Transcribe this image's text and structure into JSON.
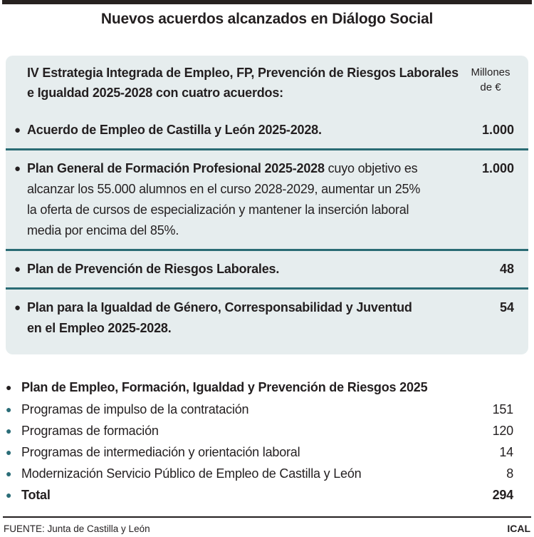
{
  "title": "Nuevos acuerdos alcanzados en Diálogo Social",
  "unit": {
    "line1": "Millones",
    "line2": "de €"
  },
  "strategy": {
    "header": "IV Estrategia Integrada de Empleo, FP, Prevención de Riesgos Laborales e Igualdad 2025-2028 con cuatro acuerdos:",
    "items": [
      {
        "bold": "Acuerdo de Empleo de Castilla y León 2025-2028.",
        "rest": "",
        "value": "1.000"
      },
      {
        "bold": "Plan General de Formación Profesional 2025-2028",
        "rest": " cuyo objetivo es alcanzar los 55.000 alumnos en el curso 2028-2029, aumentar un 25% la oferta de cursos de especialización y mantener la inserción laboral media por encima del 85%.",
        "value": "1.000"
      },
      {
        "bold": "Plan de Prevención de Riesgos Laborales.",
        "rest": "",
        "value": "48"
      },
      {
        "bold": "Plan para la Igualdad de Género, Corresponsabilidad y Juventud en el Empleo 2025-2028.",
        "rest": "",
        "value": "54"
      }
    ]
  },
  "plan2025": {
    "header": "Plan de Empleo, Formación, Igualdad y Prevención de Riesgos 2025",
    "rows": [
      {
        "label": "Programas de impulso de la contratación",
        "value": "151"
      },
      {
        "label": "Programas de formación",
        "value": "120"
      },
      {
        "label": "Programas de intermediación y orientación laboral",
        "value": "14"
      },
      {
        "label": "Modernización Servicio Público de Empleo de Castilla y León",
        "value": "8"
      }
    ],
    "total": {
      "label": "Total",
      "value": "294"
    }
  },
  "footer": {
    "source": "FUENTE: Junta de Castilla y León",
    "credit": "ICAL"
  },
  "icons": {
    "bullet": "●"
  },
  "colors": {
    "ink": "#231f20",
    "teal": "#2b6d78",
    "separator_teal": "#2a6b74",
    "panel_bg": "#e6edee",
    "top_bar": "#272220"
  },
  "chart_data": {
    "type": "table",
    "title": "Nuevos acuerdos alcanzados en Diálogo Social",
    "unit": "Millones de €",
    "sections": [
      {
        "header": "IV Estrategia Integrada de Empleo, FP, Prevención de Riesgos Laborales e Igualdad 2025-2028 con cuatro acuerdos:",
        "rows": [
          [
            "Acuerdo de Empleo de Castilla y León 2025-2028.",
            1000
          ],
          [
            "Plan General de Formación Profesional 2025-2028 cuyo objetivo es alcanzar los 55.000 alumnos en el curso 2028-2029, aumentar un 25% la oferta de cursos de especialización y mantener la inserción laboral media por encima del 85%.",
            1000
          ],
          [
            "Plan de Prevención de Riesgos Laborales.",
            48
          ],
          [
            "Plan para la Igualdad de Género, Corresponsabilidad y Juventud en el Empleo 2025-2028.",
            54
          ]
        ]
      },
      {
        "header": "Plan de Empleo, Formación, Igualdad y Prevención de Riesgos 2025",
        "rows": [
          [
            "Programas de impulso de la contratación",
            151
          ],
          [
            "Programas de formación",
            120
          ],
          [
            "Programas de intermediación y orientación laboral",
            14
          ],
          [
            "Modernización Servicio Público de Empleo de Castilla y León",
            8
          ]
        ],
        "total": 294
      }
    ],
    "source": "FUENTE: Junta de Castilla y León",
    "credit": "ICAL"
  }
}
